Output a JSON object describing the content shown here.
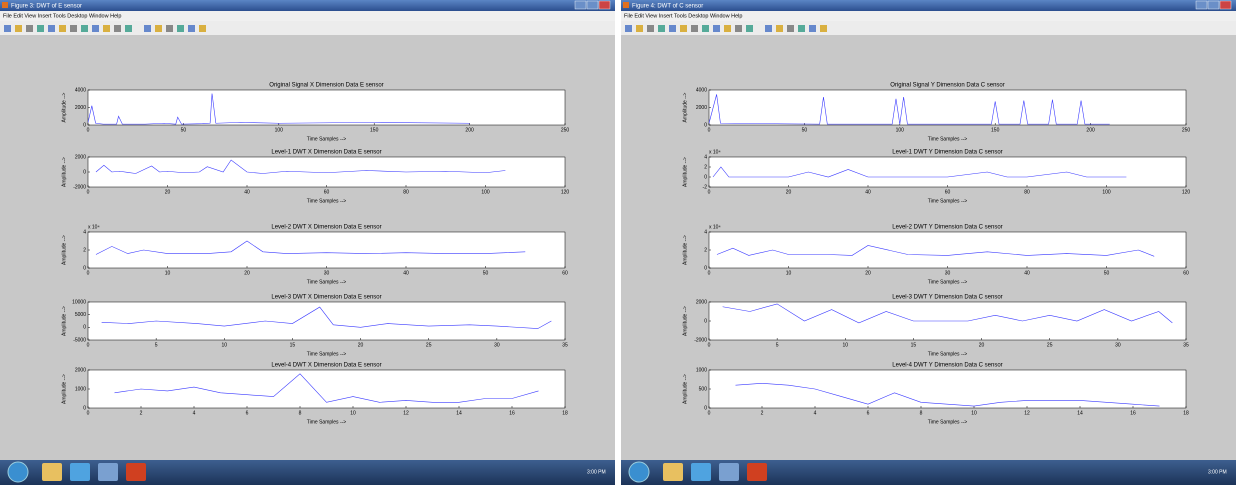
{
  "windows": [
    {
      "title": "Figure 3: DWT of E sensor",
      "menu": "File  Edit  View  Insert  Tools  Desktop  Window  Help",
      "clock": "3:00 PM",
      "plots": [
        {
          "type": "line",
          "title": "Original Signal X Dimension Data E sensor",
          "xlabel": "Time Samples -->",
          "ylabel": "Amplitude -->",
          "color": "#3a3aff",
          "xlim": [
            0,
            250
          ],
          "xticks": [
            0,
            50,
            100,
            150,
            200,
            250
          ],
          "ylim": [
            0,
            4000
          ],
          "yticks": [
            0,
            2000,
            4000
          ],
          "x": [
            0,
            2,
            4,
            8,
            15,
            16,
            18,
            30,
            40,
            46,
            47,
            49,
            60,
            64,
            65,
            67,
            80,
            100,
            150,
            200
          ],
          "values": [
            300,
            2200,
            200,
            100,
            100,
            1000,
            100,
            100,
            200,
            100,
            900,
            100,
            150,
            200,
            3600,
            200,
            300,
            200,
            300,
            200
          ]
        },
        {
          "type": "line",
          "title": "Level-1 DWT X Dimension Data E sensor",
          "xlabel": "Time Samples -->",
          "ylabel": "Amplitude -->",
          "color": "#3a3aff",
          "xlim": [
            0,
            120
          ],
          "xticks": [
            0,
            20,
            40,
            60,
            80,
            100,
            120
          ],
          "ylim": [
            -2000,
            2000
          ],
          "yticks": [
            -2000,
            0,
            2000
          ],
          "x": [
            2,
            4,
            6,
            8,
            12,
            16,
            18,
            20,
            24,
            28,
            30,
            34,
            36,
            40,
            44,
            50,
            60,
            70,
            80,
            90,
            100,
            105
          ],
          "values": [
            0,
            900,
            0,
            100,
            -200,
            800,
            0,
            100,
            -100,
            0,
            700,
            0,
            1600,
            0,
            -200,
            100,
            -100,
            200,
            0,
            100,
            -100,
            200
          ]
        },
        {
          "type": "line",
          "title": "Level-2 DWT X Dimension Data E sensor",
          "xlabel": "Time Samples -->",
          "ylabel": "Amplitude -->",
          "yexponent": "x 10⁴",
          "color": "#3a3aff",
          "xlim": [
            0,
            60
          ],
          "xticks": [
            0,
            10,
            20,
            30,
            40,
            50,
            60
          ],
          "ylim": [
            0,
            4
          ],
          "yticks": [
            0,
            2,
            4
          ],
          "x": [
            1,
            3,
            5,
            7,
            10,
            15,
            18,
            20,
            22,
            25,
            30,
            35,
            40,
            45,
            50,
            55
          ],
          "values": [
            1.5,
            2.4,
            1.6,
            2,
            1.6,
            1.6,
            1.8,
            3,
            1.8,
            1.6,
            1.7,
            1.6,
            1.7,
            1.6,
            1.6,
            1.8
          ]
        },
        {
          "type": "line",
          "title": "Level-3 DWT X Dimension Data E sensor",
          "xlabel": "Time Samples -->",
          "ylabel": "Amplitude -->",
          "color": "#3a3aff",
          "xlim": [
            0,
            35
          ],
          "xticks": [
            0,
            5,
            10,
            15,
            20,
            25,
            30,
            35
          ],
          "ylim": [
            -5000,
            10000
          ],
          "yticks": [
            -5000,
            0,
            5000,
            10000
          ],
          "x": [
            1,
            3,
            5,
            8,
            10,
            13,
            15,
            17,
            18,
            20,
            22,
            25,
            28,
            30,
            33,
            34
          ],
          "values": [
            2000,
            1500,
            2500,
            1500,
            500,
            2500,
            1500,
            8000,
            1000,
            0,
            1500,
            500,
            1000,
            500,
            -500,
            2500
          ]
        },
        {
          "type": "line",
          "title": "Level-4 DWT X Dimension Data E sensor",
          "xlabel": "Time Samples -->",
          "ylabel": "Amplitude -->",
          "color": "#3a3aff",
          "xlim": [
            0,
            18
          ],
          "xticks": [
            0,
            2,
            4,
            6,
            8,
            10,
            12,
            14,
            16,
            18
          ],
          "ylim": [
            0,
            2000
          ],
          "yticks": [
            0,
            1000,
            2000
          ],
          "x": [
            1,
            2,
            3,
            4,
            5,
            6,
            7,
            8,
            9,
            10,
            11,
            12,
            13,
            14,
            15,
            16,
            17
          ],
          "values": [
            800,
            1000,
            900,
            1100,
            800,
            700,
            600,
            1800,
            300,
            600,
            300,
            400,
            300,
            300,
            500,
            500,
            900
          ]
        }
      ]
    },
    {
      "title": "Figure 4: DWT of C sensor",
      "menu": "File  Edit  View  Insert  Tools  Desktop  Window  Help",
      "clock": "3:00 PM",
      "plots": [
        {
          "type": "line",
          "title": "Original Signal Y Dimension Data C sensor",
          "xlabel": "Time Samples -->",
          "ylabel": "Amplitude -->",
          "color": "#3a3aff",
          "xlim": [
            0,
            250
          ],
          "xticks": [
            0,
            50,
            100,
            150,
            200,
            250
          ],
          "ylim": [
            0,
            4000
          ],
          "yticks": [
            0,
            2000,
            4000
          ],
          "x": [
            0,
            4,
            6,
            58,
            60,
            62,
            96,
            98,
            100,
            102,
            104,
            148,
            150,
            152,
            163,
            165,
            167,
            178,
            180,
            182,
            193,
            195,
            197,
            210
          ],
          "values": [
            200,
            3500,
            200,
            100,
            3200,
            100,
            100,
            3000,
            100,
            3200,
            100,
            100,
            2700,
            100,
            100,
            2800,
            100,
            100,
            2900,
            100,
            100,
            2800,
            100,
            100
          ]
        },
        {
          "type": "line",
          "title": "Level-1 DWT Y Dimension Data C sensor",
          "xlabel": "Time Samples -->",
          "ylabel": "Amplitude -->",
          "yexponent": "x 10⁴",
          "color": "#3a3aff",
          "xlim": [
            0,
            120
          ],
          "xticks": [
            0,
            20,
            40,
            60,
            80,
            100,
            120
          ],
          "ylim": [
            -2,
            4
          ],
          "yticks": [
            -2,
            0,
            2,
            4
          ],
          "x": [
            1,
            3,
            5,
            20,
            25,
            30,
            35,
            40,
            60,
            70,
            75,
            80,
            90,
            95,
            100,
            105
          ],
          "values": [
            0,
            2,
            0,
            0,
            1,
            0,
            1.5,
            0,
            0,
            1,
            0,
            0,
            1,
            0,
            0,
            0
          ]
        },
        {
          "type": "line",
          "title": "Level-2 DWT Y Dimension Data C sensor",
          "xlabel": "Time Samples -->",
          "ylabel": "Amplitude -->",
          "yexponent": "x 10⁴",
          "color": "#3a3aff",
          "xlim": [
            0,
            60
          ],
          "xticks": [
            0,
            10,
            20,
            30,
            40,
            50,
            60
          ],
          "ylim": [
            0,
            4
          ],
          "yticks": [
            0,
            2,
            4
          ],
          "x": [
            1,
            3,
            5,
            8,
            10,
            15,
            18,
            20,
            25,
            30,
            35,
            40,
            45,
            50,
            54,
            56
          ],
          "values": [
            1.5,
            2.2,
            1.4,
            2,
            1.5,
            1.5,
            1.4,
            2.5,
            1.5,
            1.4,
            1.8,
            1.4,
            1.6,
            1.4,
            2,
            1.3
          ]
        },
        {
          "type": "line",
          "title": "Level-3 DWT Y Dimension Data C sensor",
          "xlabel": "Time Samples -->",
          "ylabel": "Amplitude -->",
          "color": "#3a3aff",
          "xlim": [
            0,
            35
          ],
          "xticks": [
            0,
            5,
            10,
            15,
            20,
            25,
            30,
            35
          ],
          "ylim": [
            -2000,
            2000
          ],
          "yticks": [
            -2000,
            0,
            2000
          ],
          "x": [
            1,
            3,
            5,
            7,
            9,
            11,
            13,
            15,
            17,
            19,
            21,
            23,
            25,
            27,
            29,
            31,
            33,
            34
          ],
          "values": [
            1500,
            1000,
            1800,
            0,
            1200,
            -200,
            1000,
            0,
            0,
            0,
            600,
            0,
            600,
            0,
            1200,
            0,
            1000,
            -200
          ]
        },
        {
          "type": "line",
          "title": "Level-4 DWT Y Dimension Data C sensor",
          "xlabel": "Time Samples -->",
          "ylabel": "Amplitude -->",
          "color": "#3a3aff",
          "xlim": [
            0,
            18
          ],
          "xticks": [
            0,
            2,
            4,
            6,
            8,
            10,
            12,
            14,
            16,
            18
          ],
          "ylim": [
            0,
            1000
          ],
          "yticks": [
            0,
            500,
            1000
          ],
          "x": [
            1,
            2,
            3,
            4,
            5,
            6,
            7,
            8,
            9,
            10,
            11,
            12,
            13,
            14,
            15,
            16,
            17
          ],
          "values": [
            600,
            650,
            600,
            500,
            300,
            100,
            400,
            150,
            100,
            50,
            150,
            200,
            200,
            200,
            150,
            100,
            50
          ]
        }
      ]
    }
  ]
}
